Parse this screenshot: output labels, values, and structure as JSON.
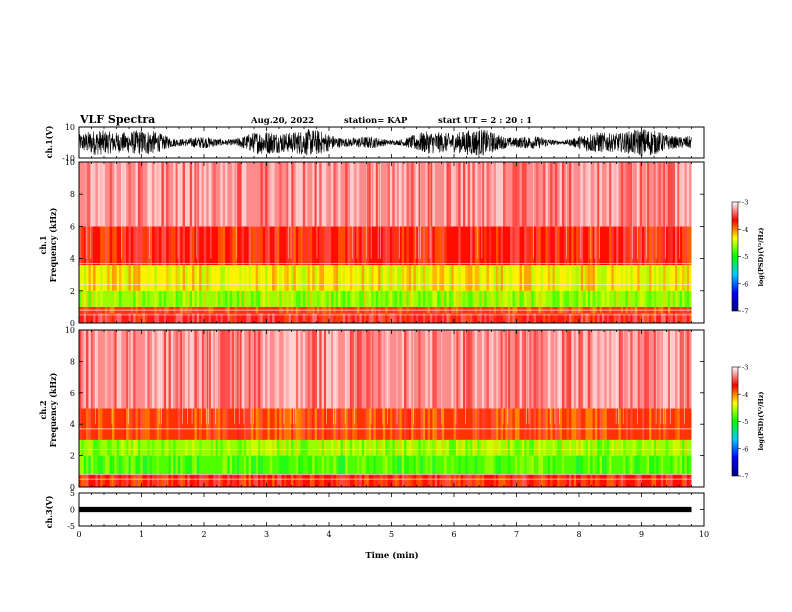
{
  "header": {
    "title": "VLF Spectra",
    "date": "Aug.20, 2022",
    "station": "station= KAP",
    "start": "start  UT =   2  : 20 : 1"
  },
  "chart_data": [
    {
      "type": "line",
      "panel": "ch1-waveform",
      "ylabel": "ch.1(V)",
      "ylim": [
        -10,
        10
      ],
      "yticks": [
        "10",
        "-10"
      ],
      "xlim": [
        0,
        10
      ]
    },
    {
      "type": "heatmap",
      "panel": "ch1-spectrogram",
      "ylabel_line1": "ch.1",
      "ylabel_line2": "Frequency  (kHz)",
      "ylim": [
        0,
        10
      ],
      "yticks": [
        "0",
        "2",
        "4",
        "6",
        "8",
        "10"
      ],
      "xlim": [
        0,
        9.8
      ],
      "bands": [
        {
          "from": 0.0,
          "to": 0.6,
          "level": -3.6
        },
        {
          "from": 0.6,
          "to": 1.0,
          "level": -3.8
        },
        {
          "from": 1.0,
          "to": 2.0,
          "level": -4.6
        },
        {
          "from": 2.0,
          "to": 3.6,
          "level": -4.3
        },
        {
          "from": 3.6,
          "to": 6.0,
          "level": -3.7
        },
        {
          "from": 6.0,
          "to": 10.0,
          "level": -3.3
        }
      ],
      "colorbar": {
        "label": "log(PSD)(V²/Hz)",
        "ticks": [
          "-3",
          "-4",
          "-5",
          "-6",
          "-7"
        ],
        "min": -7,
        "max": -3,
        "colors": [
          "#000080",
          "#0000ff",
          "#00c8ff",
          "#00ff00",
          "#ffff00",
          "#ff0000",
          "#ffffff"
        ]
      }
    },
    {
      "type": "heatmap",
      "panel": "ch2-spectrogram",
      "ylabel_line1": "ch.2",
      "ylabel_line2": "Frequency  (kHz)",
      "ylim": [
        0,
        10
      ],
      "yticks": [
        "0",
        "2",
        "4",
        "6",
        "8",
        "10"
      ],
      "xlim": [
        0,
        9.8
      ],
      "bands": [
        {
          "from": 0.0,
          "to": 0.8,
          "level": -3.7
        },
        {
          "from": 0.8,
          "to": 2.0,
          "level": -4.8
        },
        {
          "from": 2.0,
          "to": 3.0,
          "level": -4.6
        },
        {
          "from": 3.0,
          "to": 5.0,
          "level": -3.8
        },
        {
          "from": 5.0,
          "to": 10.0,
          "level": -3.3
        }
      ],
      "colorbar": {
        "label": "log(PSD)(V²/Hz)",
        "ticks": [
          "-3",
          "-4",
          "-5",
          "-6",
          "-7"
        ],
        "min": -7,
        "max": -3,
        "colors": [
          "#000080",
          "#0000ff",
          "#00c8ff",
          "#00ff00",
          "#ffff00",
          "#ff0000",
          "#ffffff"
        ]
      }
    },
    {
      "type": "line",
      "panel": "ch3-waveform",
      "ylabel": "ch.3(V)",
      "ylim": [
        -5,
        5
      ],
      "yticks": [
        "5",
        "0",
        "-5"
      ],
      "xlim": [
        0,
        10
      ],
      "xlabel": "Time  (min)",
      "xticks": [
        "0",
        "1",
        "2",
        "3",
        "4",
        "5",
        "6",
        "7",
        "8",
        "9",
        "10"
      ]
    }
  ]
}
